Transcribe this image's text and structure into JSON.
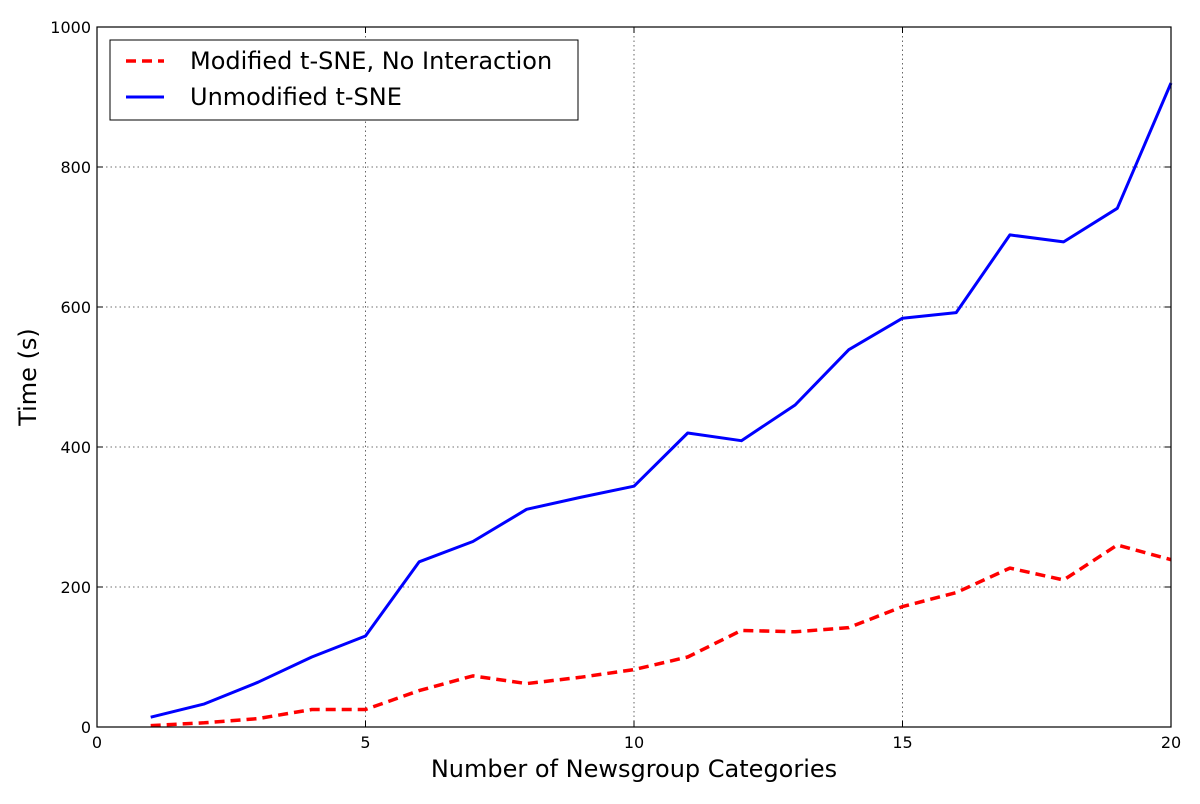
{
  "chart_data": {
    "type": "line",
    "xlabel": "Number of Newsgroup Categories",
    "ylabel": "Time (s)",
    "xlim": [
      0,
      20
    ],
    "ylim": [
      0,
      1000
    ],
    "xticks": [
      0,
      5,
      10,
      15,
      20
    ],
    "yticks": [
      0,
      200,
      400,
      600,
      800,
      1000
    ],
    "grid": true,
    "legend_position": "top-left",
    "x": [
      1,
      2,
      3,
      4,
      5,
      6,
      7,
      8,
      9,
      10,
      11,
      12,
      13,
      14,
      15,
      16,
      17,
      18,
      19,
      20
    ],
    "series": [
      {
        "name": "Modified t-SNE, No Interaction",
        "color": "#ff0000",
        "line_style": "dashed",
        "values": [
          2,
          6,
          12,
          25,
          25,
          52,
          73,
          62,
          71,
          82,
          100,
          138,
          136,
          142,
          172,
          192,
          227,
          210,
          260,
          239
        ]
      },
      {
        "name": "Unmodified t-SNE",
        "color": "#0000ff",
        "line_style": "solid",
        "values": [
          14,
          33,
          64,
          100,
          130,
          236,
          265,
          311,
          328,
          344,
          420,
          409,
          460,
          539,
          584,
          592,
          703,
          693,
          741,
          920
        ]
      }
    ]
  }
}
